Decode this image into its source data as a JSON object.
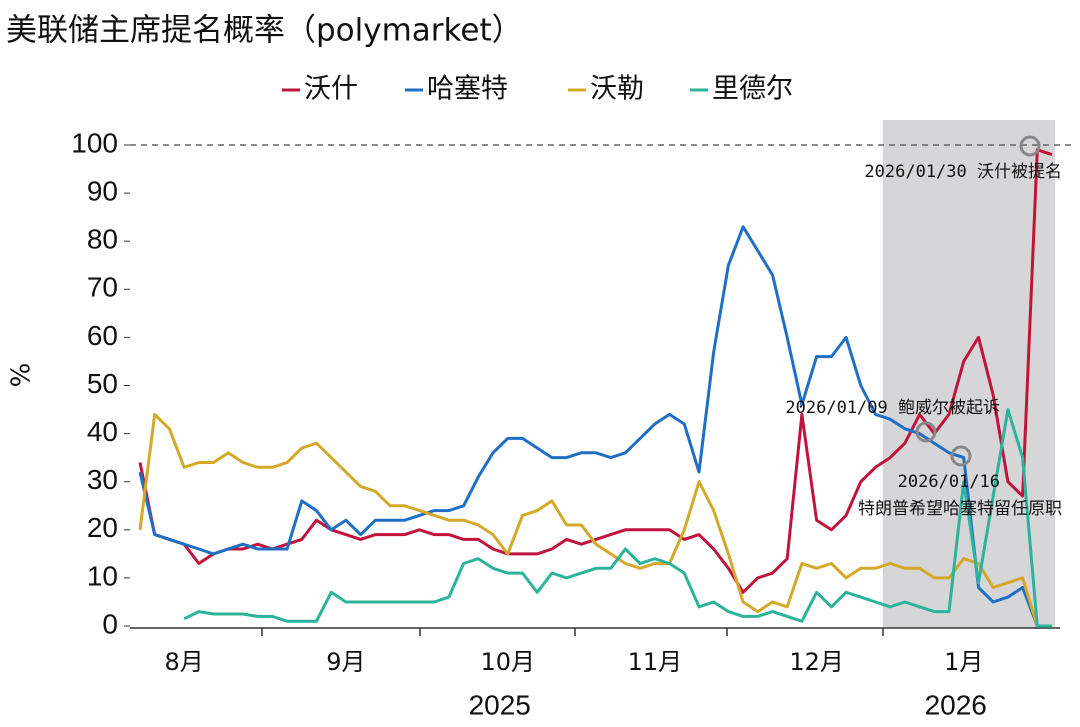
{
  "chart_data": {
    "type": "line",
    "title": "美联储主席提名概率（polymarket）",
    "ylabel": "%",
    "categories": [
      null,
      null,
      null,
      "8月",
      null,
      null,
      null,
      null,
      null,
      null,
      null,
      null,
      null,
      null,
      "9月",
      null,
      null,
      null,
      null,
      null,
      null,
      null,
      null,
      null,
      null,
      "10月",
      null,
      null,
      null,
      null,
      null,
      null,
      null,
      null,
      null,
      "11月",
      null,
      null,
      null,
      null,
      null,
      null,
      null,
      null,
      null,
      null,
      "12月",
      null,
      null,
      null,
      null,
      null,
      null,
      null,
      null,
      null,
      "1月",
      null,
      null,
      null,
      null,
      null,
      null
    ],
    "year_labels": [
      "2025",
      "2026"
    ],
    "series": [
      {
        "name": "沃什",
        "color": "#c0143c",
        "values": [
          34,
          19,
          18,
          17,
          13,
          15,
          16,
          16,
          17,
          16,
          17,
          18,
          22,
          20,
          19,
          18,
          19,
          19,
          19,
          20,
          19,
          19,
          18,
          18,
          16,
          15,
          15,
          15,
          16,
          18,
          17,
          18,
          19,
          20,
          20,
          20,
          20,
          18,
          19,
          16,
          12,
          7,
          10,
          11,
          14,
          44,
          22,
          20,
          23,
          30,
          33,
          35,
          38,
          44,
          40,
          44,
          55,
          60,
          48,
          30,
          27,
          99,
          98
        ]
      },
      {
        "name": "哈塞特",
        "color": "#1f6fc5",
        "values": [
          32,
          19,
          18,
          17,
          16,
          15,
          16,
          17,
          16,
          16,
          16,
          26,
          24,
          20,
          22,
          19,
          22,
          22,
          22,
          23,
          24,
          24,
          25,
          31,
          36,
          39,
          39,
          37,
          35,
          35,
          36,
          36,
          35,
          36,
          39,
          42,
          44,
          42,
          32,
          57,
          75,
          83,
          78,
          73,
          60,
          46,
          56,
          56,
          60,
          50,
          44,
          43,
          41,
          40,
          38,
          36,
          35,
          8,
          5,
          6,
          8,
          0,
          0
        ]
      },
      {
        "name": "沃勒",
        "color": "#d4a92a",
        "values": [
          20,
          44,
          41,
          33,
          34,
          34,
          36,
          34,
          33,
          33,
          34,
          37,
          38,
          35,
          32,
          29,
          28,
          25,
          25,
          24,
          23,
          22,
          22,
          21,
          19,
          15,
          23,
          24,
          26,
          21,
          21,
          17,
          15,
          13,
          12,
          13,
          13,
          20,
          30,
          24,
          15,
          5,
          3,
          5,
          4,
          13,
          12,
          13,
          10,
          12,
          12,
          13,
          12,
          12,
          10,
          10,
          14,
          13,
          8,
          9,
          10,
          0,
          0
        ]
      },
      {
        "name": "里德尔",
        "color": "#2db39a",
        "values": [
          null,
          null,
          null,
          1.5,
          3,
          2.5,
          2.5,
          2.5,
          2,
          2,
          1,
          1,
          1,
          7,
          5,
          5,
          5,
          5,
          5,
          5,
          5,
          6,
          13,
          14,
          12,
          11,
          11,
          7,
          11,
          10,
          11,
          12,
          12,
          16,
          13,
          14,
          13,
          11,
          4,
          5,
          3,
          2,
          2,
          3,
          2,
          1,
          7,
          4,
          7,
          6,
          5,
          4,
          5,
          4,
          3,
          3,
          30,
          9,
          27,
          45,
          35,
          0,
          0
        ]
      }
    ],
    "ylim": [
      0,
      100
    ],
    "yticks": [
      0,
      10,
      20,
      30,
      40,
      50,
      60,
      70,
      80,
      90,
      100
    ],
    "reference_line": 100,
    "annotations": [
      {
        "lines": [
          "2026/01/30 沃什被提名"
        ]
      },
      {
        "lines": [
          "2026/01/09 鲍威尔被起诉"
        ]
      },
      {
        "lines": [
          "2026/01/16",
          "特朗普希望哈塞特留任原职"
        ]
      }
    ]
  }
}
